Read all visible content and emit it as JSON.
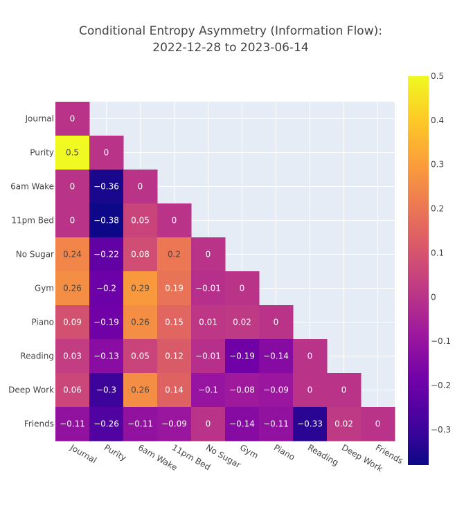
{
  "chart_data": {
    "type": "heatmap",
    "title_lines": [
      "Conditional Entropy Asymmetry (Information Flow):",
      "2022-12-28 to 2023-06-14"
    ],
    "x_categories": [
      "Journal",
      "Purity",
      "6am Wake",
      "11pm Bed",
      "No Sugar",
      "Gym",
      "Piano",
      "Reading",
      "Deep Work",
      "Friends"
    ],
    "y_categories": [
      "Journal",
      "Purity",
      "6am Wake",
      "11pm Bed",
      "No Sugar",
      "Gym",
      "Piano",
      "Reading",
      "Deep Work",
      "Friends"
    ],
    "values": [
      [
        0,
        null,
        null,
        null,
        null,
        null,
        null,
        null,
        null,
        null
      ],
      [
        0.5,
        0,
        null,
        null,
        null,
        null,
        null,
        null,
        null,
        null
      ],
      [
        0,
        -0.36,
        0,
        null,
        null,
        null,
        null,
        null,
        null,
        null
      ],
      [
        0,
        -0.38,
        0.05,
        0,
        null,
        null,
        null,
        null,
        null,
        null
      ],
      [
        0.24,
        -0.22,
        0.08,
        0.2,
        0,
        null,
        null,
        null,
        null,
        null
      ],
      [
        0.26,
        -0.2,
        0.29,
        0.19,
        -0.01,
        0,
        null,
        null,
        null,
        null
      ],
      [
        0.09,
        -0.19,
        0.26,
        0.15,
        0.01,
        0.02,
        0,
        null,
        null,
        null
      ],
      [
        0.03,
        -0.13,
        0.05,
        0.12,
        -0.01,
        -0.19,
        -0.14,
        0,
        null,
        null
      ],
      [
        0.06,
        -0.3,
        0.26,
        0.14,
        -0.1,
        -0.08,
        -0.09,
        0,
        0,
        null
      ],
      [
        -0.11,
        -0.26,
        -0.11,
        -0.09,
        0,
        -0.14,
        -0.11,
        -0.33,
        0.02,
        0
      ]
    ],
    "colorscale": "Plasma",
    "zmin": -0.38,
    "zmax": 0.5,
    "colorbar_ticks": [
      0.5,
      0.4,
      0.3,
      0.2,
      0.1,
      0,
      -0.1,
      -0.2,
      -0.3
    ]
  }
}
